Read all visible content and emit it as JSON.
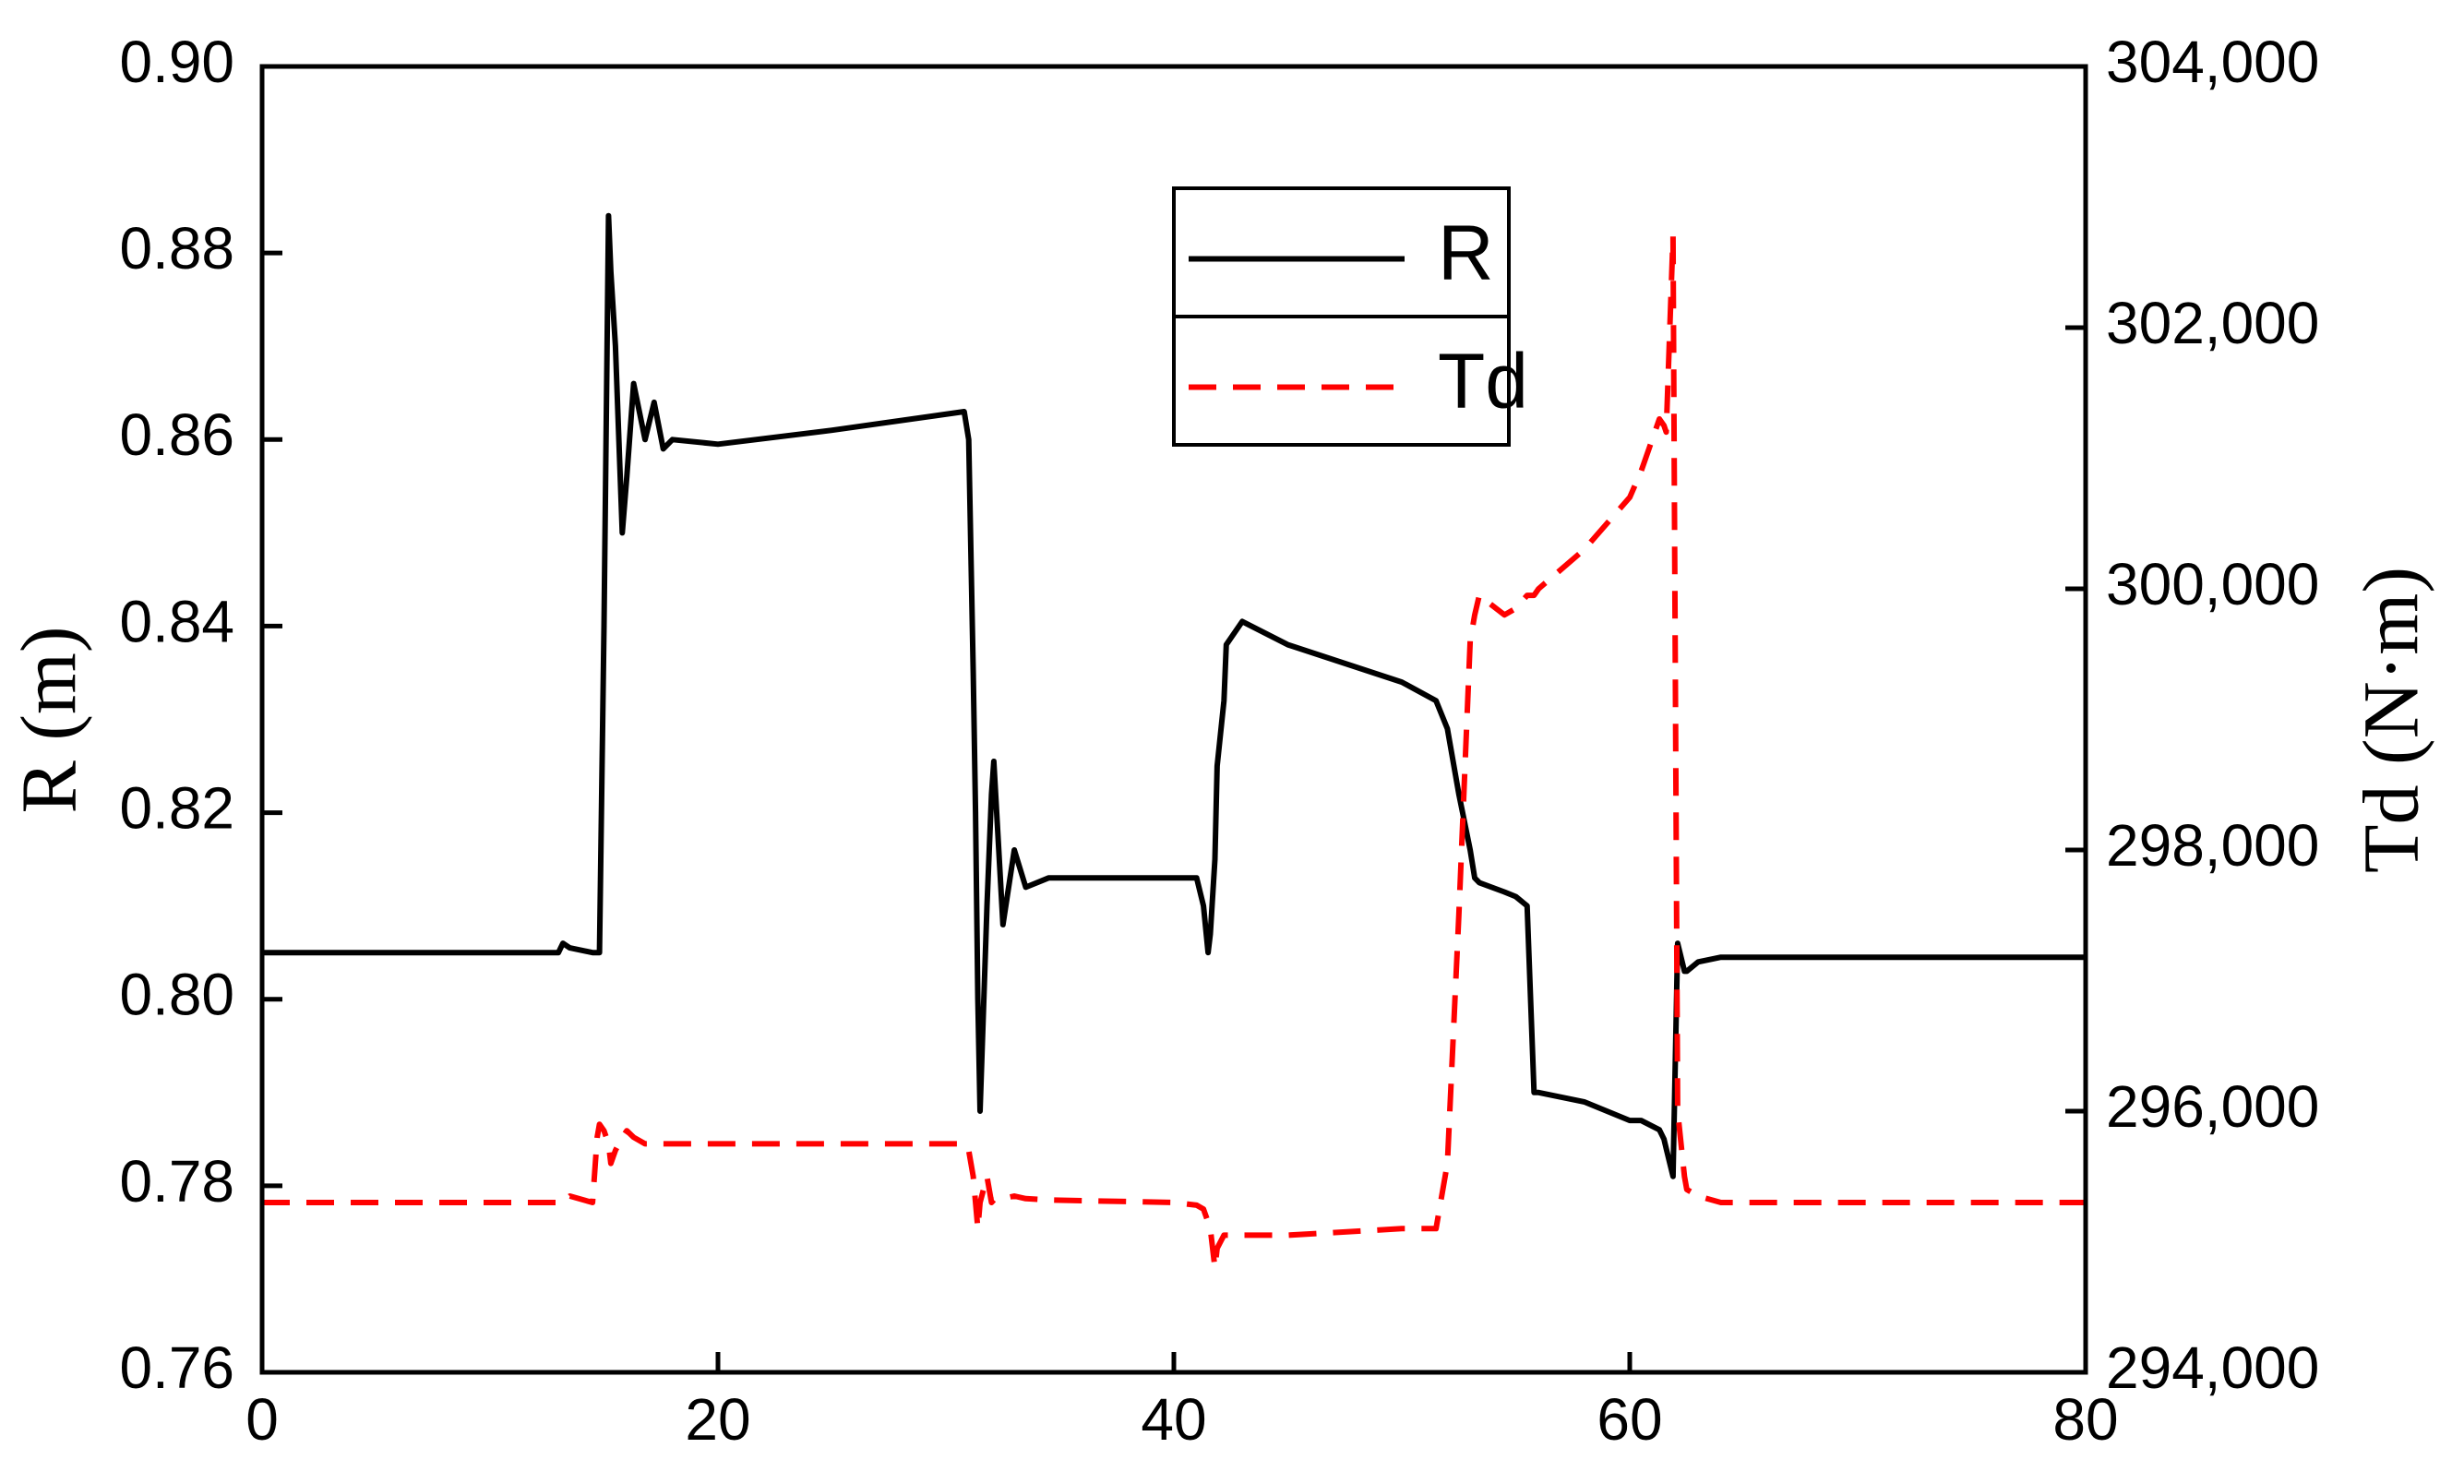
{
  "chart_data": {
    "type": "line",
    "y_label": "R (m)",
    "y2_label": "Td (N·m)",
    "x": [
      0,
      13,
      13.2,
      13.5,
      14.5,
      14.7,
      14.8,
      15.0,
      15.2,
      15.3,
      15.5,
      15.8,
      16.0,
      16.3,
      16.8,
      17.0,
      17.2,
      17.6,
      18,
      20,
      25,
      30.8,
      31.0,
      31.2,
      31.3,
      31.4,
      31.5,
      31.8,
      32.0,
      32.1,
      32.5,
      33.0,
      33.5,
      34.5,
      40,
      41,
      41.3,
      41.5,
      41.6,
      41.8,
      41.9,
      42.2,
      42.3,
      43,
      45,
      50,
      51.5,
      52.0,
      52.5,
      53.0,
      53.2,
      53.4,
      54.5,
      55,
      55.5,
      55.8,
      56,
      58,
      60,
      60.5,
      61.3,
      61.5,
      61.6,
      61.9,
      62.1,
      62.4,
      62.5,
      63,
      64,
      80
    ],
    "series": [
      {
        "name": "R",
        "color": "#000000",
        "dash": false,
        "values": [
          0.805,
          0.805,
          0.806,
          0.8055,
          0.805,
          0.805,
          0.805,
          0.84,
          0.884,
          0.878,
          0.87,
          0.85,
          0.856,
          0.866,
          0.86,
          0.862,
          0.864,
          0.859,
          0.86,
          0.8595,
          0.861,
          0.863,
          0.86,
          0.835,
          0.82,
          0.8,
          0.788,
          0.81,
          0.822,
          0.8255,
          0.808,
          0.816,
          0.812,
          0.813,
          0.813,
          0.813,
          0.81,
          0.805,
          0.807,
          0.815,
          0.825,
          0.832,
          0.838,
          0.8405,
          0.838,
          0.834,
          0.832,
          0.829,
          0.822,
          0.816,
          0.813,
          0.8125,
          0.8115,
          0.811,
          0.81,
          0.79,
          0.79,
          0.789,
          0.787,
          0.787,
          0.786,
          0.785,
          0.784,
          0.781,
          0.806,
          0.803,
          0.803,
          0.804,
          0.8045,
          0.8045
        ]
      },
      {
        "name": "Td",
        "color": "#ff0000",
        "dash": true,
        "axis": "y2",
        "values": [
          295300,
          295300,
          295300,
          295350,
          295300,
          295800,
          295900,
          295850,
          295750,
          295600,
          295700,
          295800,
          295850,
          295800,
          295750,
          295750,
          295750,
          295750,
          295750,
          295750,
          295750,
          295750,
          295700,
          295500,
          295300,
          295100,
          295300,
          295500,
          295300,
          295320,
          295330,
          295350,
          295330,
          295320,
          295300,
          295280,
          295250,
          295150,
          295100,
          294800,
          294950,
          295050,
          295050,
          295050,
          295050,
          295100,
          295100,
          295600,
          297500,
          299600,
          299800,
          299950,
          299800,
          299850,
          299950,
          299950,
          300000,
          300300,
          300700,
          300900,
          301300,
          301250,
          301200,
          302700,
          296000,
          295500,
          295400,
          295350,
          295300,
          295300
        ]
      }
    ],
    "xlim": [
      0,
      80
    ],
    "xticks": [
      0,
      20,
      40,
      60,
      80
    ],
    "ylim": [
      0.76,
      0.9
    ],
    "yticks": [
      0.76,
      0.78,
      {
        "value": 0.8,
        "label": "0.80"
      },
      0.82,
      0.84,
      0.86,
      0.88,
      {
        "value": 0.9,
        "label": "0.90"
      }
    ],
    "y2lim": [
      294000,
      304000
    ],
    "y2ticks": [
      {
        "value": 294000,
        "label": "294,000"
      },
      {
        "value": 296000,
        "label": "296,000"
      },
      {
        "value": 298000,
        "label": "298,000"
      },
      {
        "value": 300000,
        "label": "300,000"
      },
      {
        "value": 302000,
        "label": "302,000"
      },
      {
        "value": 304000,
        "label": "304,000"
      }
    ],
    "grid": false
  }
}
